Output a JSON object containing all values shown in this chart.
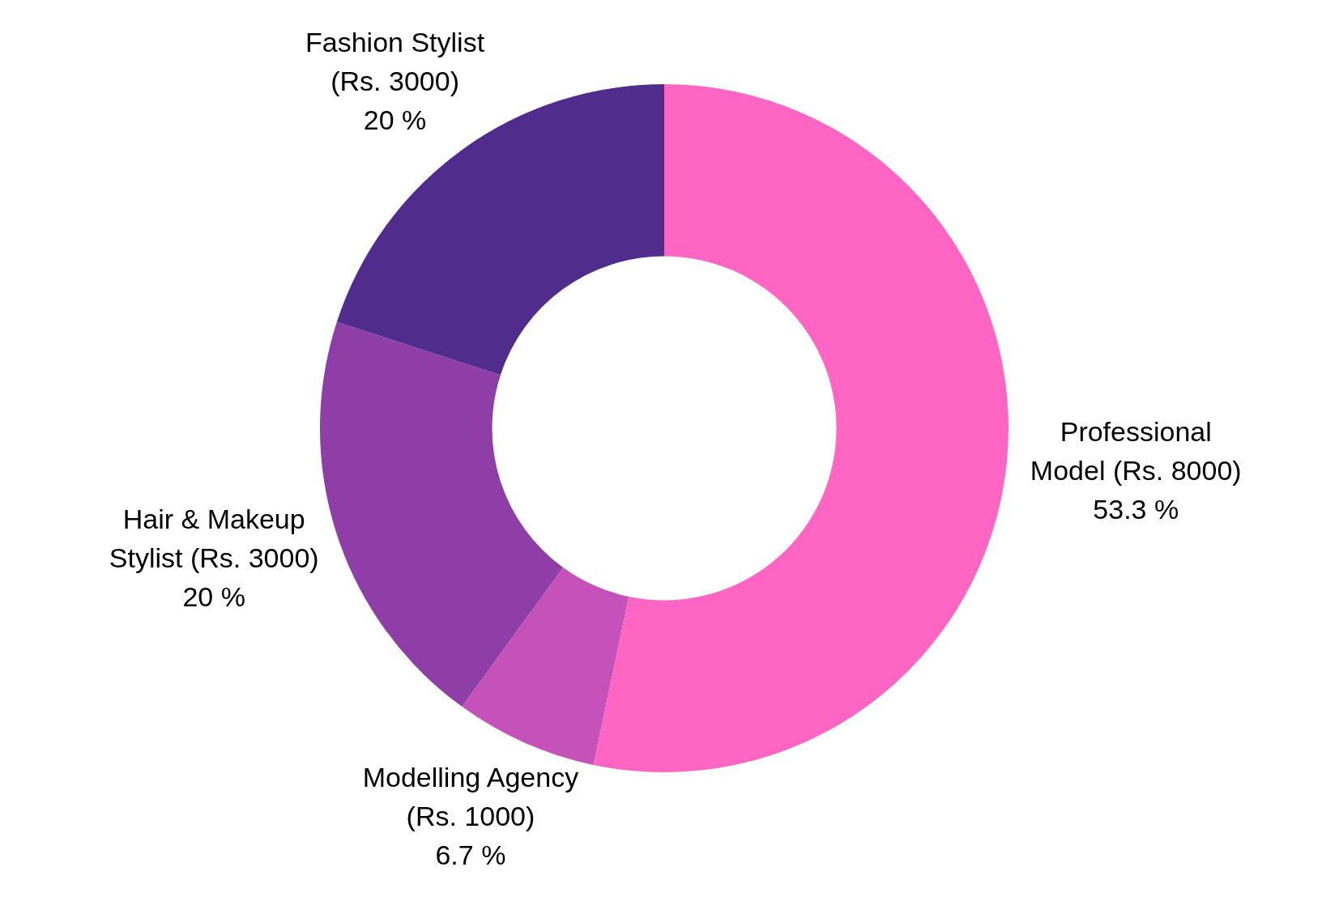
{
  "chart_data": {
    "type": "donut",
    "categories": [
      "Professional Model (Rs. 8000)",
      "Modelling Agency (Rs. 1000)",
      "Hair & Makeup Stylist (Rs. 3000)",
      "Fashion Stylist (Rs. 3000)"
    ],
    "values": [
      53.3,
      6.7,
      20,
      20
    ],
    "colors": [
      "#ff66c4",
      "#c452b8",
      "#8e3ea6",
      "#502c8c"
    ],
    "value_labels": [
      "53.3 %",
      "6.7 %",
      "20 %",
      "20 %"
    ]
  }
}
